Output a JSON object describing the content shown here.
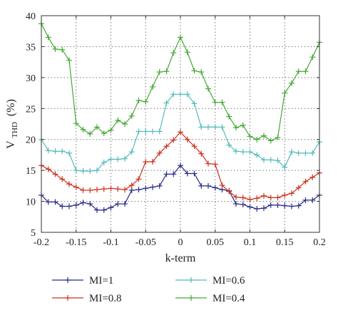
{
  "chart_data": {
    "type": "line",
    "title": "",
    "xlabel": "k-term",
    "ylabel_main": "V",
    "ylabel_sub": "THD",
    "ylabel_unit": "(%)",
    "xlim": [
      -0.2,
      0.2
    ],
    "ylim": [
      5,
      40
    ],
    "xticks": [
      -0.2,
      -0.15,
      -0.1,
      -0.05,
      0,
      0.05,
      0.1,
      0.15,
      0.2
    ],
    "xtick_labels": [
      "-0.2",
      "-0.15",
      "-0.1",
      "-0.05",
      "0",
      "0.05",
      "0.1",
      "0.15",
      "0.2"
    ],
    "yticks": [
      5,
      10,
      15,
      20,
      25,
      30,
      35,
      40
    ],
    "ytick_labels": [
      "5",
      "10",
      "15",
      "20",
      "25",
      "30",
      "35",
      "40"
    ],
    "grid": true,
    "legend_position": "bottom",
    "marker": "+",
    "x": [
      -0.2,
      -0.19,
      -0.18,
      -0.17,
      -0.16,
      -0.15,
      -0.14,
      -0.13,
      -0.12,
      -0.11,
      -0.1,
      -0.09,
      -0.08,
      -0.07,
      -0.06,
      -0.05,
      -0.04,
      -0.03,
      -0.02,
      -0.01,
      0,
      0.01,
      0.02,
      0.03,
      0.04,
      0.05,
      0.06,
      0.07,
      0.08,
      0.09,
      0.1,
      0.11,
      0.12,
      0.13,
      0.14,
      0.15,
      0.16,
      0.17,
      0.18,
      0.19,
      0.2
    ],
    "series": [
      {
        "name": "MI=1",
        "color": "#2b2b8c",
        "values": [
          11.0,
          9.9,
          9.9,
          9.2,
          9.2,
          9.4,
          9.8,
          9.6,
          8.6,
          8.6,
          9.0,
          9.6,
          9.6,
          11.8,
          11.9,
          12.1,
          12.3,
          12.5,
          14.4,
          14.4,
          15.8,
          14.5,
          14.5,
          12.5,
          12.5,
          12.2,
          11.9,
          11.7,
          9.6,
          9.5,
          9.1,
          8.8,
          8.9,
          9.4,
          9.4,
          9.3,
          9.2,
          9.3,
          10.2,
          10.2,
          11.0
        ]
      },
      {
        "name": "MI=0.8",
        "color": "#cc3322",
        "values": [
          15.8,
          15.2,
          14.4,
          13.6,
          12.8,
          12.3,
          11.8,
          11.8,
          11.9,
          12.0,
          12.1,
          12.0,
          11.9,
          12.6,
          13.6,
          16.4,
          16.4,
          17.8,
          18.9,
          19.9,
          21.2,
          20.0,
          18.9,
          17.7,
          16.1,
          16.0,
          12.6,
          11.6,
          10.7,
          10.6,
          10.3,
          10.5,
          10.9,
          10.6,
          10.6,
          11.0,
          11.3,
          12.2,
          13.2,
          13.9,
          14.6
        ]
      },
      {
        "name": "MI=0.6",
        "color": "#55bbbb",
        "values": [
          20.0,
          18.2,
          18.1,
          18.1,
          17.8,
          15.0,
          14.9,
          14.9,
          15.0,
          16.3,
          16.8,
          16.8,
          16.9,
          18.0,
          21.3,
          21.3,
          21.3,
          21.3,
          25.9,
          27.3,
          27.3,
          27.3,
          25.8,
          22.0,
          22.0,
          22.0,
          22.0,
          19.1,
          18.1,
          18.0,
          18.0,
          17.5,
          16.7,
          16.7,
          16.6,
          15.5,
          18.0,
          17.8,
          17.8,
          17.8,
          19.6
        ]
      },
      {
        "name": "MI=0.4",
        "color": "#44aa33",
        "values": [
          38.7,
          36.5,
          34.6,
          34.5,
          32.8,
          22.6,
          21.6,
          20.9,
          22.0,
          21.0,
          21.5,
          23.1,
          22.5,
          23.8,
          26.3,
          26.1,
          28.5,
          30.9,
          31.0,
          34.0,
          36.5,
          34.1,
          31.1,
          30.9,
          28.2,
          26.0,
          26.0,
          23.7,
          21.9,
          22.3,
          20.5,
          20.0,
          20.6,
          19.8,
          20.3,
          27.5,
          29.1,
          31.0,
          31.0,
          33.3,
          35.7
        ]
      }
    ]
  }
}
